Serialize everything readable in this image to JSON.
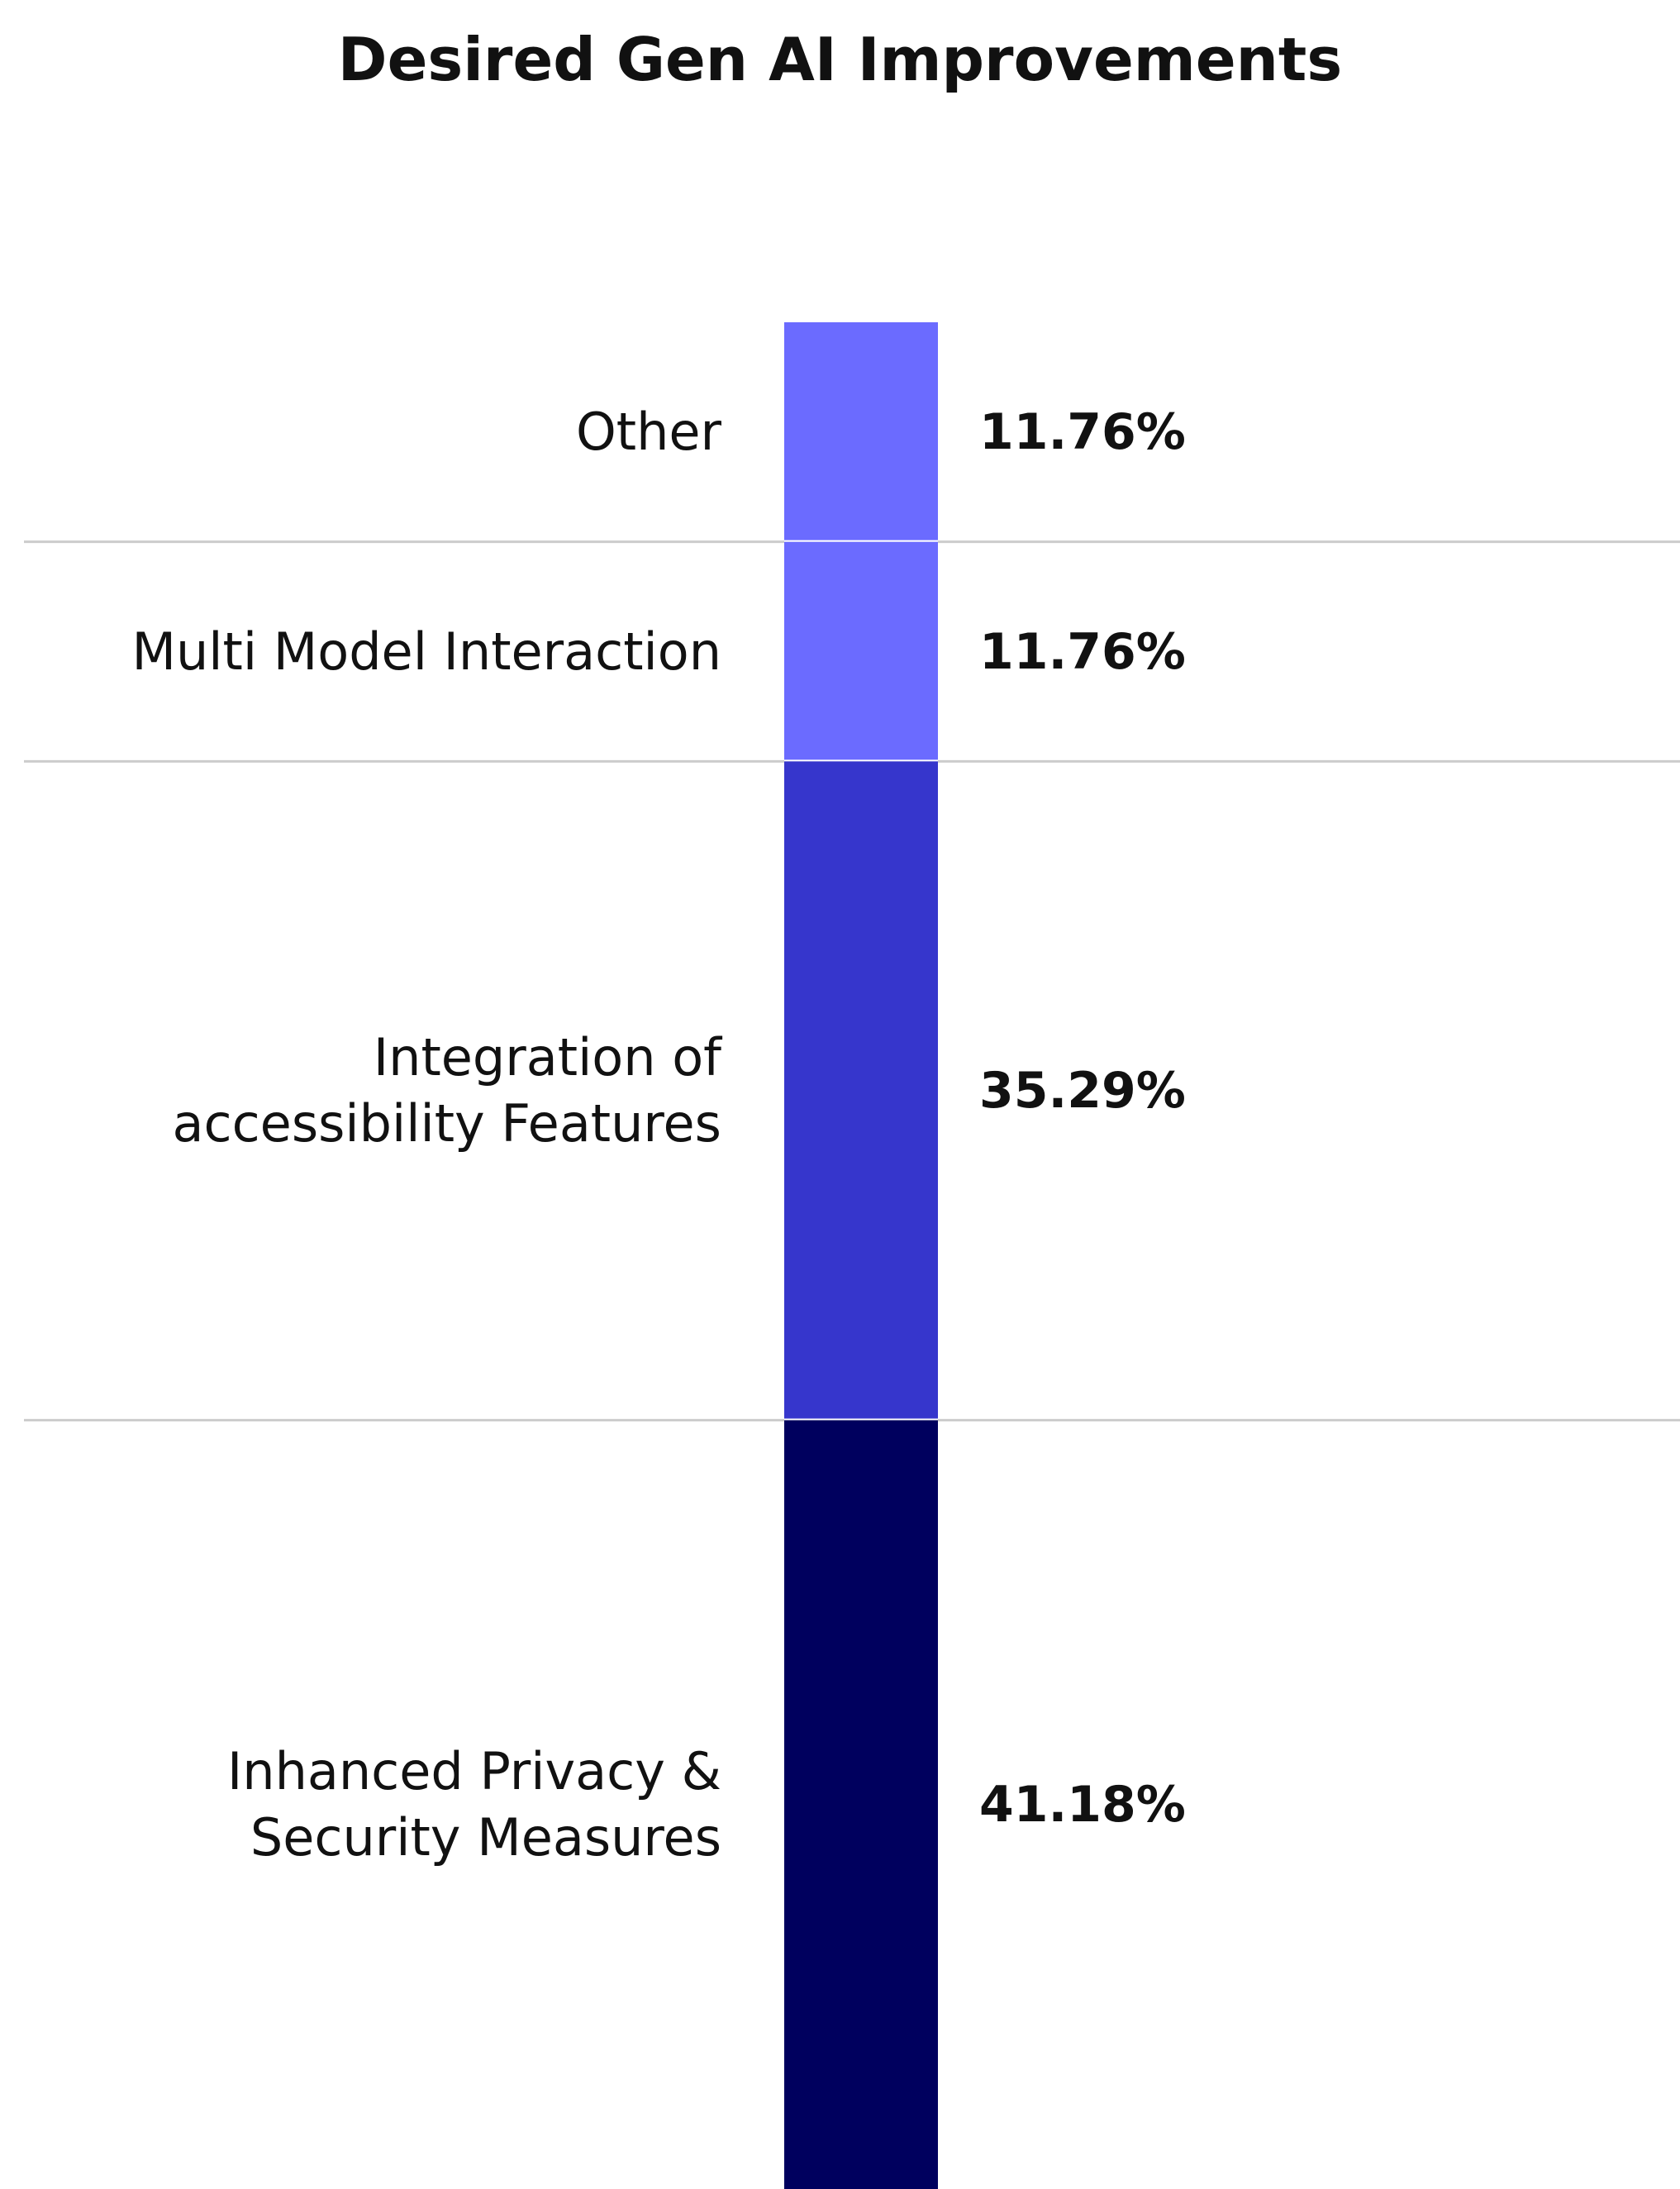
{
  "chart_data": {
    "type": "stacked_bar",
    "title": "Desired Gen AI Improvements",
    "categories": [
      "Other",
      "Multi Model Interaction",
      "Integration of accessibility Features",
      "Inhanced Privacy & Security Measures"
    ],
    "values": [
      11.76,
      11.76,
      35.29,
      41.18
    ],
    "value_labels": [
      "11.76%",
      "11.76%",
      "35.29%",
      "41.18%"
    ],
    "colors": [
      "#6b6bff",
      "#6b6bff",
      "#3636cc",
      "#00005e"
    ]
  }
}
